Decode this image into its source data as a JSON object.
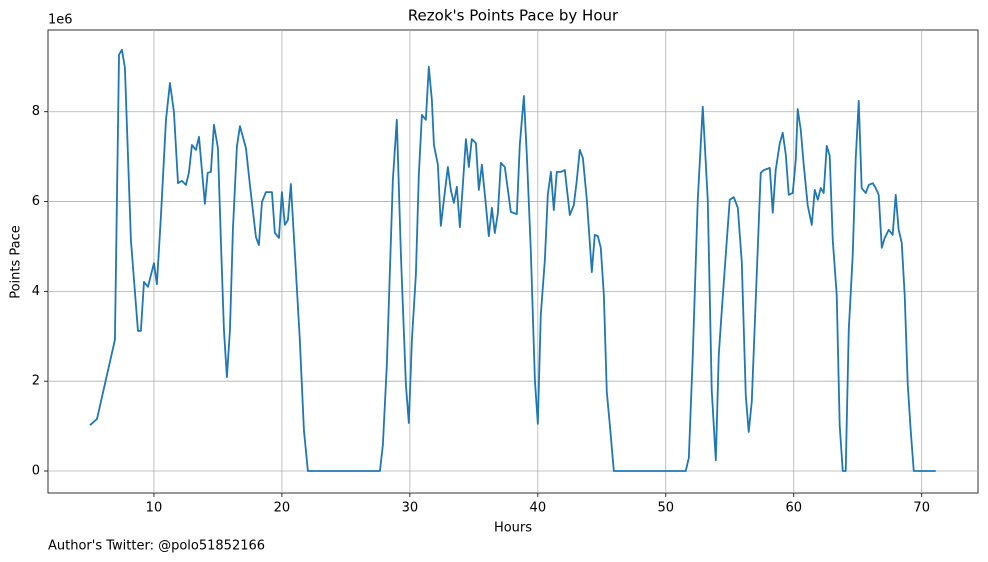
{
  "chart_data": {
    "type": "line",
    "title": "Rezok's Points Pace by Hour",
    "xlabel": "Hours",
    "ylabel": "Points Pace",
    "y_offset_label": "1e6",
    "footnote": "Author's Twitter: @polo51852166",
    "color": "#1f77b4",
    "grid": true,
    "xlim": [
      1.72,
      74.4
    ],
    "ylim": [
      -0.49,
      9.82
    ],
    "xticks": [
      10,
      20,
      30,
      40,
      50,
      60,
      70
    ],
    "yticks": [
      0,
      2,
      4,
      6,
      8
    ],
    "x": [
      5.0,
      5.55,
      6.95,
      7.27,
      7.5,
      7.73,
      8.2,
      8.75,
      8.98,
      9.22,
      9.53,
      10.0,
      10.23,
      10.55,
      10.94,
      11.25,
      11.56,
      11.88,
      12.19,
      12.5,
      12.73,
      12.97,
      13.28,
      13.52,
      13.98,
      14.2,
      14.45,
      14.69,
      15.0,
      15.23,
      15.47,
      15.7,
      15.94,
      16.17,
      16.48,
      16.72,
      17.19,
      17.5,
      17.97,
      18.2,
      18.44,
      18.75,
      19.22,
      19.45,
      19.77,
      20.0,
      20.23,
      20.47,
      20.7,
      21.02,
      21.4,
      21.72,
      22.03,
      27.66,
      27.89,
      28.2,
      28.67,
      28.98,
      29.3,
      29.69,
      29.92,
      30.16,
      30.47,
      30.7,
      30.94,
      31.25,
      31.48,
      31.72,
      31.88,
      32.19,
      32.42,
      32.66,
      32.97,
      33.2,
      33.44,
      33.67,
      33.91,
      34.14,
      34.38,
      34.61,
      34.84,
      35.16,
      35.39,
      35.63,
      35.94,
      36.17,
      36.41,
      36.64,
      36.88,
      37.11,
      37.42,
      37.89,
      38.36,
      38.59,
      38.91,
      39.14,
      39.45,
      39.77,
      40.0,
      40.23,
      40.55,
      40.78,
      41.02,
      41.25,
      41.48,
      41.8,
      42.11,
      42.5,
      42.81,
      43.05,
      43.28,
      43.52,
      43.83,
      44.22,
      44.45,
      44.69,
      44.92,
      45.16,
      45.39,
      45.63,
      45.94,
      51.56,
      51.8,
      52.11,
      52.5,
      52.89,
      53.28,
      53.59,
      53.91,
      54.14,
      54.38,
      54.77,
      55.0,
      55.31,
      55.63,
      55.94,
      56.25,
      56.48,
      56.72,
      57.03,
      57.42,
      57.66,
      58.13,
      58.36,
      58.59,
      58.91,
      59.14,
      59.38,
      59.61,
      59.92,
      60.16,
      60.31,
      60.55,
      60.78,
      61.09,
      61.41,
      61.64,
      61.88,
      62.11,
      62.34,
      62.58,
      62.81,
      63.05,
      63.36,
      63.59,
      63.83,
      64.06,
      64.3,
      64.61,
      64.84,
      65.08,
      65.31,
      65.63,
      65.86,
      66.17,
      66.41,
      66.64,
      66.88,
      67.11,
      67.42,
      67.73,
      67.97,
      68.2,
      68.44,
      68.67,
      68.91,
      69.14,
      69.38,
      71.1
    ],
    "values": [
      1.02,
      1.16,
      2.92,
      9.27,
      9.38,
      8.98,
      5.14,
      3.12,
      3.12,
      4.21,
      4.1,
      4.63,
      4.16,
      5.7,
      7.82,
      8.64,
      8.0,
      6.41,
      6.46,
      6.37,
      6.64,
      7.26,
      7.15,
      7.44,
      5.95,
      6.64,
      6.66,
      7.71,
      7.19,
      5.14,
      3.14,
      2.09,
      3.14,
      5.37,
      7.22,
      7.68,
      7.19,
      6.37,
      5.21,
      5.03,
      5.99,
      6.21,
      6.21,
      5.3,
      5.19,
      6.21,
      5.48,
      5.59,
      6.39,
      4.81,
      2.92,
      0.91,
      0,
      0,
      0.58,
      2.36,
      6.48,
      7.82,
      4.81,
      1.92,
      1.07,
      2.92,
      4.37,
      6.59,
      7.93,
      7.82,
      9.0,
      8.26,
      7.26,
      6.82,
      5.46,
      6.04,
      6.77,
      6.26,
      5.97,
      6.33,
      5.43,
      6.37,
      7.39,
      6.77,
      7.39,
      7.3,
      6.26,
      6.82,
      5.92,
      5.23,
      5.86,
      5.3,
      5.75,
      6.86,
      6.77,
      5.77,
      5.72,
      7.26,
      8.35,
      7.04,
      4.92,
      2.03,
      1.05,
      3.47,
      4.7,
      6.15,
      6.66,
      5.81,
      6.66,
      6.66,
      6.7,
      5.7,
      5.92,
      6.48,
      7.15,
      6.97,
      6.04,
      4.43,
      5.26,
      5.23,
      4.97,
      3.92,
      1.76,
      1.02,
      0,
      0,
      0.29,
      2.58,
      6.04,
      8.11,
      6.04,
      1.8,
      0.24,
      2.58,
      3.59,
      5.14,
      6.04,
      6.1,
      5.86,
      4.65,
      1.69,
      0.87,
      1.54,
      3.81,
      6.64,
      6.7,
      6.75,
      5.75,
      6.7,
      7.3,
      7.53,
      7.04,
      6.15,
      6.19,
      6.93,
      8.06,
      7.59,
      6.82,
      5.92,
      5.48,
      6.26,
      6.04,
      6.3,
      6.19,
      7.24,
      7.02,
      5.14,
      3.92,
      1.02,
      0,
      0,
      3.14,
      4.81,
      6.93,
      8.24,
      6.3,
      6.19,
      6.37,
      6.41,
      6.3,
      6.15,
      4.97,
      5.19,
      5.37,
      5.26,
      6.15,
      5.37,
      5.08,
      3.92,
      1.92,
      0.91,
      0,
      0
    ]
  }
}
